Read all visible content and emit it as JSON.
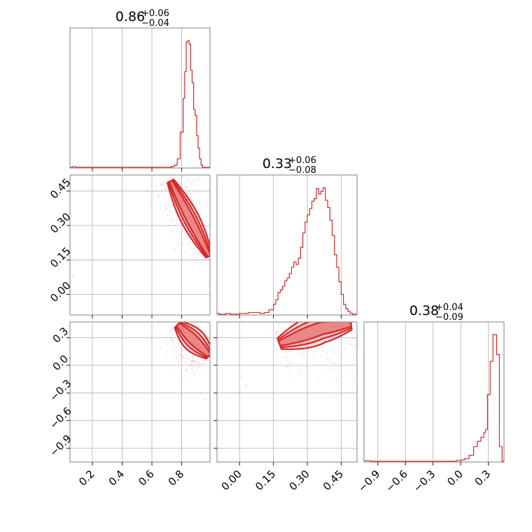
{
  "chart_data": {
    "type": "corner",
    "color": "#d62728",
    "grid": true,
    "panels": [
      {
        "id": "hist-0",
        "kind": "hist",
        "param": 0,
        "title": {
          "value": "0.86",
          "plus": "+0.06",
          "minus": "−0.04"
        },
        "xlim": [
          0.05,
          0.99
        ],
        "hist": {
          "edges": [
            0.05,
            0.07,
            0.09,
            0.11,
            0.71,
            0.73,
            0.75,
            0.77,
            0.79,
            0.81,
            0.82,
            0.83,
            0.84,
            0.85,
            0.86,
            0.87,
            0.88,
            0.89,
            0.9,
            0.91,
            0.92,
            0.93,
            0.94,
            0.95,
            0.96,
            0.97,
            0.98,
            0.99
          ],
          "counts": [
            0,
            1,
            0,
            0,
            0,
            1,
            3,
            12,
            50,
            98,
            136,
            178,
            180,
            175,
            138,
            120,
            82,
            74,
            45,
            27,
            12,
            3,
            0,
            0,
            0,
            0,
            0
          ]
        }
      },
      {
        "id": "scatter-1-0",
        "kind": "scatter",
        "px": 0,
        "py": 1,
        "xlim": [
          0.05,
          0.99
        ],
        "ylim": [
          -0.09,
          0.52
        ],
        "centerline": [
          [
            0.72,
            0.5
          ],
          [
            0.99,
            0.16
          ]
        ],
        "spread": 0.028,
        "outliers": [
          [
            0.07,
            0.08
          ],
          [
            0.1,
            0.14
          ],
          [
            0.98,
            0.04
          ]
        ]
      },
      {
        "id": "hist-1",
        "kind": "hist",
        "param": 1,
        "title": {
          "value": "0.33",
          "plus": "+0.06",
          "minus": "−0.08"
        },
        "xlim": [
          -0.1,
          0.52
        ],
        "hist": {
          "edges": [
            -0.1,
            -0.09,
            -0.06,
            -0.04,
            0.0,
            0.04,
            0.09,
            0.11,
            0.13,
            0.15,
            0.16,
            0.17,
            0.18,
            0.19,
            0.2,
            0.21,
            0.22,
            0.23,
            0.24,
            0.25,
            0.26,
            0.27,
            0.28,
            0.29,
            0.3,
            0.31,
            0.32,
            0.33,
            0.34,
            0.35,
            0.36,
            0.37,
            0.38,
            0.39,
            0.4,
            0.41,
            0.42,
            0.43,
            0.44,
            0.45,
            0.46,
            0.47,
            0.48,
            0.49,
            0.5,
            0.52
          ],
          "counts": [
            1,
            0,
            1,
            0,
            1,
            2,
            1,
            2,
            5,
            11,
            16,
            24,
            27,
            31,
            37,
            40,
            45,
            52,
            58,
            55,
            62,
            74,
            90,
            102,
            110,
            117,
            125,
            128,
            139,
            133,
            136,
            140,
            126,
            118,
            104,
            87,
            66,
            52,
            36,
            22,
            11,
            6,
            3,
            1,
            0
          ]
        }
      },
      {
        "id": "scatter-2-0",
        "kind": "scatter",
        "px": 0,
        "py": 2,
        "xlim": [
          0.05,
          0.99
        ],
        "ylim": [
          -1.05,
          0.47
        ],
        "centerline": [
          [
            0.77,
            0.45
          ],
          [
            0.99,
            0.1
          ]
        ],
        "spread": 0.035,
        "outliers": [
          [
            0.96,
            -0.37
          ],
          [
            0.22,
            -0.95
          ],
          [
            0.93,
            -0.3
          ]
        ]
      },
      {
        "id": "scatter-2-1",
        "kind": "scatter",
        "px": 1,
        "py": 2,
        "xlim": [
          -0.1,
          0.52
        ],
        "ylim": [
          -1.05,
          0.47
        ],
        "centerline": [
          [
            0.17,
            0.23
          ],
          [
            0.36,
            0.4
          ],
          [
            0.5,
            0.45
          ]
        ],
        "spread": 0.03,
        "outliers": [
          [
            0.01,
            -0.13
          ],
          [
            0.03,
            -0.22
          ],
          [
            0.43,
            -0.15
          ],
          [
            0.0,
            -0.3
          ]
        ]
      },
      {
        "id": "hist-2",
        "kind": "hist",
        "param": 2,
        "title": {
          "value": "0.38",
          "plus": "+0.04",
          "minus": "−0.09"
        },
        "xlim": [
          -1.05,
          0.47
        ],
        "hist": {
          "edges": [
            -1.05,
            -0.98,
            -0.5,
            -0.05,
            0.0,
            0.04,
            0.09,
            0.14,
            0.18,
            0.22,
            0.25,
            0.27,
            0.29,
            0.32,
            0.35,
            0.39,
            0.42,
            0.45,
            0.47
          ],
          "counts": [
            1,
            0,
            0,
            1,
            2,
            4,
            9,
            22,
            30,
            36,
            43,
            48,
            100,
            150,
            190,
            160,
            22,
            0
          ]
        }
      }
    ],
    "axes": {
      "x_params": [
        {
          "ticks": [
            0.2,
            0.4,
            0.6,
            0.8
          ],
          "labels": [
            "0.2",
            "0.4",
            "0.6",
            "0.8"
          ]
        },
        {
          "ticks": [
            0.0,
            0.15,
            0.3,
            0.45
          ],
          "labels": [
            "0.00",
            "0.15",
            "0.30",
            "0.45"
          ]
        },
        {
          "ticks": [
            -0.9,
            -0.6,
            -0.3,
            0.0,
            0.3
          ],
          "labels": [
            "−0.9",
            "−0.6",
            "−0.3",
            "0.0",
            "0.3"
          ]
        }
      ],
      "y_params": [
        null,
        {
          "ticks": [
            0.0,
            0.15,
            0.3,
            0.45
          ],
          "labels": [
            "0.00",
            "0.15",
            "0.30",
            "0.45"
          ]
        },
        {
          "ticks": [
            -0.9,
            -0.6,
            -0.3,
            0.0,
            0.3
          ],
          "labels": [
            "−0.9",
            "−0.6",
            "−0.3",
            "0.0",
            "0.3"
          ]
        }
      ]
    }
  }
}
